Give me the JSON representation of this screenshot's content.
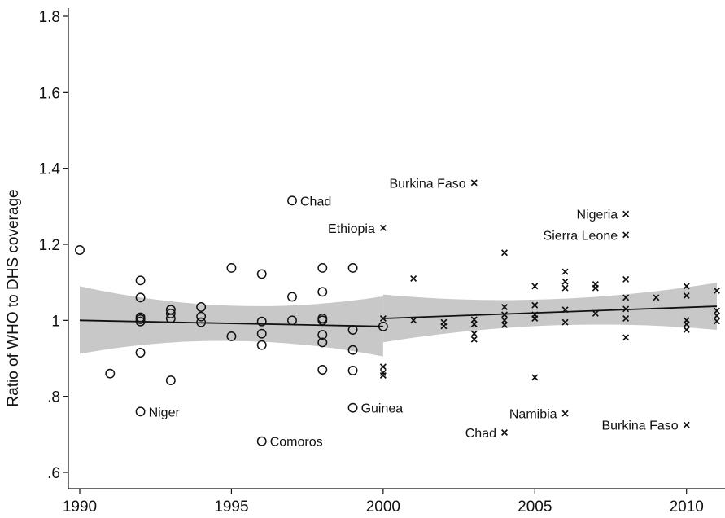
{
  "chart_data": {
    "type": "scatter",
    "title": "",
    "xlabel": "",
    "ylabel": "Ratio of WHO to DHS coverage",
    "xlim": [
      1990,
      2011
    ],
    "ylim": [
      0.6,
      1.8
    ],
    "xticks": [
      1990,
      1995,
      2000,
      2005,
      2010
    ],
    "xtick_labels": [
      "1990",
      "1995",
      "2000",
      "2005",
      "2010"
    ],
    "yticks": [
      0.6,
      0.8,
      1.0,
      1.2,
      1.4,
      1.6,
      1.8
    ],
    "ytick_labels": [
      ".6",
      ".8",
      "1",
      "1.2",
      "1.4",
      "1.6",
      "1.8"
    ],
    "grid": false,
    "colors": {
      "band": "#c8c8c8",
      "line": "#111111",
      "marker": "#111111"
    },
    "series": [
      {
        "marker": "circle",
        "points": [
          [
            1990,
            1.185
          ],
          [
            1991,
            0.86
          ],
          [
            1992,
            1.105
          ],
          [
            1992,
            1.06
          ],
          [
            1992,
            1.008
          ],
          [
            1992,
            1.003
          ],
          [
            1992,
            0.997
          ],
          [
            1992,
            0.915
          ],
          [
            1992,
            0.76
          ],
          [
            1993,
            1.028
          ],
          [
            1993,
            1.018
          ],
          [
            1993,
            1.005
          ],
          [
            1993,
            0.842
          ],
          [
            1994,
            1.035
          ],
          [
            1994,
            1.01
          ],
          [
            1994,
            0.995
          ],
          [
            1995,
            1.138
          ],
          [
            1995,
            0.958
          ],
          [
            1996,
            1.122
          ],
          [
            1996,
            0.997
          ],
          [
            1996,
            0.965
          ],
          [
            1996,
            0.935
          ],
          [
            1996,
            0.682
          ],
          [
            1997,
            1.315
          ],
          [
            1997,
            1.062
          ],
          [
            1997,
            1.0
          ],
          [
            1998,
            1.138
          ],
          [
            1998,
            1.075
          ],
          [
            1998,
            1.005
          ],
          [
            1998,
            1.0
          ],
          [
            1998,
            0.962
          ],
          [
            1998,
            0.942
          ],
          [
            1998,
            0.87
          ],
          [
            1999,
            1.138
          ],
          [
            1999,
            0.975
          ],
          [
            1999,
            0.922
          ],
          [
            1999,
            0.868
          ],
          [
            1999,
            0.77
          ],
          [
            2000,
            0.984
          ]
        ]
      },
      {
        "marker": "cross",
        "points": [
          [
            2000,
            1.243
          ],
          [
            2000,
            1.005
          ],
          [
            2000,
            0.878
          ],
          [
            2000,
            0.862
          ],
          [
            2000,
            0.855
          ],
          [
            2001,
            1.11
          ],
          [
            2001,
            1.0
          ],
          [
            2002,
            0.995
          ],
          [
            2002,
            0.985
          ],
          [
            2003,
            1.362
          ],
          [
            2003,
            1.002
          ],
          [
            2003,
            0.99
          ],
          [
            2003,
            0.965
          ],
          [
            2003,
            0.95
          ],
          [
            2004,
            1.178
          ],
          [
            2004,
            1.035
          ],
          [
            2004,
            1.015
          ],
          [
            2004,
            1.0
          ],
          [
            2004,
            0.988
          ],
          [
            2004,
            0.705
          ],
          [
            2005,
            1.09
          ],
          [
            2005,
            1.04
          ],
          [
            2005,
            1.015
          ],
          [
            2005,
            1.005
          ],
          [
            2005,
            0.85
          ],
          [
            2006,
            1.128
          ],
          [
            2006,
            1.102
          ],
          [
            2006,
            1.085
          ],
          [
            2006,
            1.028
          ],
          [
            2006,
            0.995
          ],
          [
            2006,
            0.755
          ],
          [
            2007,
            1.095
          ],
          [
            2007,
            1.085
          ],
          [
            2007,
            1.018
          ],
          [
            2008,
            1.28
          ],
          [
            2008,
            1.225
          ],
          [
            2008,
            1.108
          ],
          [
            2008,
            1.06
          ],
          [
            2008,
            1.03
          ],
          [
            2008,
            1.005
          ],
          [
            2008,
            0.955
          ],
          [
            2009,
            1.06
          ],
          [
            2010,
            1.09
          ],
          [
            2010,
            1.065
          ],
          [
            2010,
            1.0
          ],
          [
            2010,
            0.99
          ],
          [
            2010,
            0.975
          ],
          [
            2010,
            0.725
          ],
          [
            2011,
            1.078
          ],
          [
            2011,
            1.025
          ],
          [
            2011,
            1.012
          ],
          [
            2011,
            0.998
          ]
        ]
      }
    ],
    "fits": [
      {
        "x": [
          1990,
          2000
        ],
        "y": [
          1.0,
          0.984
        ],
        "band_lower": [
          0.912,
          0.905
        ],
        "band_upper": [
          1.09,
          1.063
        ]
      },
      {
        "x": [
          2000,
          2011
        ],
        "y": [
          1.005,
          1.037
        ],
        "band_lower": [
          0.942,
          0.975
        ],
        "band_upper": [
          1.068,
          1.099
        ]
      }
    ],
    "annotations": [
      {
        "text": "Chad",
        "x": 1997,
        "y": 1.315,
        "side": "right"
      },
      {
        "text": "Niger",
        "x": 1992,
        "y": 0.76,
        "side": "right"
      },
      {
        "text": "Comoros",
        "x": 1996,
        "y": 0.682,
        "side": "right"
      },
      {
        "text": "Guinea",
        "x": 1999,
        "y": 0.77,
        "side": "right"
      },
      {
        "text": "Burkina Faso",
        "x": 2003,
        "y": 1.362,
        "side": "left"
      },
      {
        "text": "Ethiopia",
        "x": 2000,
        "y": 1.243,
        "side": "left"
      },
      {
        "text": "Nigeria",
        "x": 2008,
        "y": 1.28,
        "side": "left"
      },
      {
        "text": "Sierra Leone",
        "x": 2008,
        "y": 1.225,
        "side": "left"
      },
      {
        "text": "Namibia",
        "x": 2006,
        "y": 0.755,
        "side": "left"
      },
      {
        "text": "Chad",
        "x": 2004,
        "y": 0.705,
        "side": "left"
      },
      {
        "text": "Burkina Faso",
        "x": 2010,
        "y": 0.725,
        "side": "left"
      }
    ]
  }
}
